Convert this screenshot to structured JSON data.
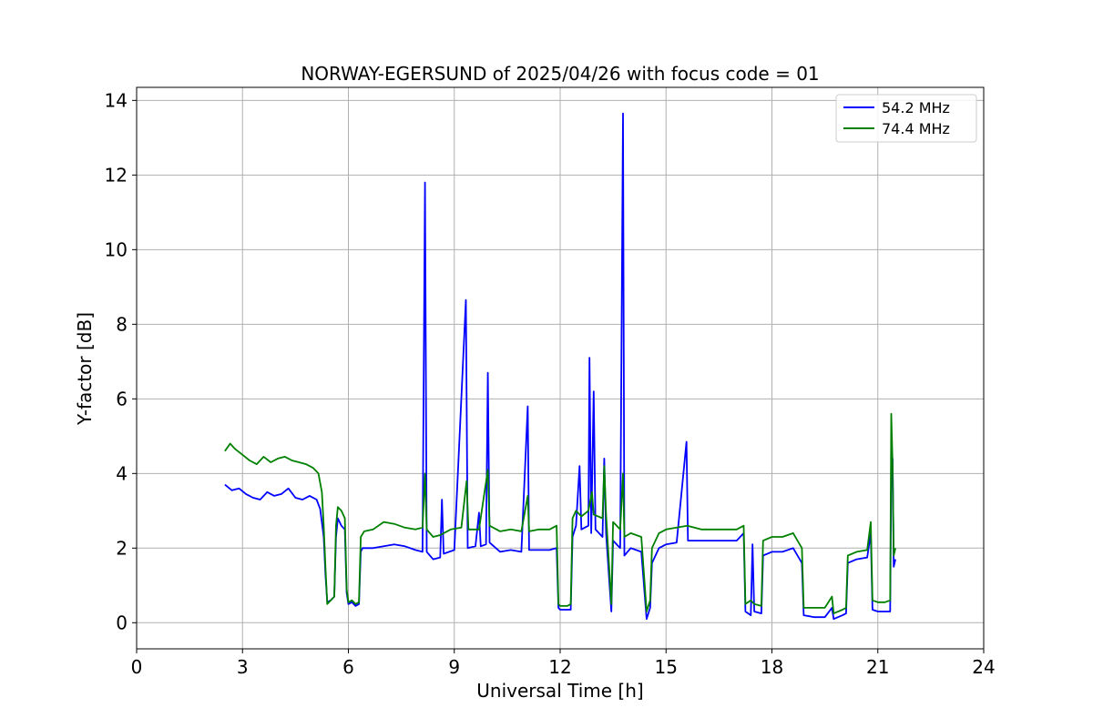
{
  "chart_data": {
    "type": "line",
    "title": "NORWAY-EGERSUND of 2025/04/26 with focus code = 01",
    "xlabel": "Universal Time [h]",
    "ylabel": "Y-factor [dB]",
    "xlim": [
      0,
      24
    ],
    "ylim": [
      -0.7,
      14.35
    ],
    "xticks": [
      0,
      3,
      6,
      9,
      12,
      15,
      18,
      21,
      24
    ],
    "yticks": [
      0,
      2,
      4,
      6,
      8,
      10,
      12,
      14
    ],
    "grid": true,
    "legend": "top-right",
    "series": [
      {
        "name": "54.2 MHz",
        "color": "#0000ff",
        "points": [
          [
            2.5,
            3.7
          ],
          [
            2.7,
            3.55
          ],
          [
            2.9,
            3.6
          ],
          [
            3.1,
            3.45
          ],
          [
            3.3,
            3.35
          ],
          [
            3.5,
            3.3
          ],
          [
            3.7,
            3.5
          ],
          [
            3.9,
            3.4
          ],
          [
            4.1,
            3.45
          ],
          [
            4.3,
            3.6
          ],
          [
            4.5,
            3.35
          ],
          [
            4.7,
            3.3
          ],
          [
            4.9,
            3.4
          ],
          [
            5.1,
            3.3
          ],
          [
            5.2,
            3.05
          ],
          [
            5.3,
            2.3
          ],
          [
            5.35,
            1.3
          ],
          [
            5.4,
            0.55
          ],
          [
            5.5,
            0.6
          ],
          [
            5.6,
            0.7
          ],
          [
            5.65,
            2.3
          ],
          [
            5.7,
            2.8
          ],
          [
            5.8,
            2.6
          ],
          [
            5.9,
            2.5
          ],
          [
            5.95,
            0.8
          ],
          [
            6.0,
            0.5
          ],
          [
            6.1,
            0.55
          ],
          [
            6.2,
            0.45
          ],
          [
            6.3,
            0.5
          ],
          [
            6.35,
            1.9
          ],
          [
            6.4,
            2.0
          ],
          [
            6.7,
            2.0
          ],
          [
            7.0,
            2.05
          ],
          [
            7.3,
            2.1
          ],
          [
            7.6,
            2.05
          ],
          [
            7.9,
            1.95
          ],
          [
            8.1,
            1.9
          ],
          [
            8.17,
            11.8
          ],
          [
            8.22,
            1.9
          ],
          [
            8.4,
            1.7
          ],
          [
            8.6,
            1.75
          ],
          [
            8.65,
            3.3
          ],
          [
            8.7,
            1.85
          ],
          [
            9.0,
            1.95
          ],
          [
            9.33,
            8.65
          ],
          [
            9.38,
            2.0
          ],
          [
            9.6,
            2.05
          ],
          [
            9.7,
            2.95
          ],
          [
            9.75,
            2.05
          ],
          [
            9.9,
            2.1
          ],
          [
            9.95,
            6.7
          ],
          [
            10.0,
            2.15
          ],
          [
            10.3,
            1.9
          ],
          [
            10.6,
            1.95
          ],
          [
            10.9,
            1.9
          ],
          [
            11.08,
            5.8
          ],
          [
            11.12,
            1.95
          ],
          [
            11.4,
            1.95
          ],
          [
            11.7,
            1.95
          ],
          [
            11.9,
            2.0
          ],
          [
            11.95,
            0.4
          ],
          [
            12.0,
            0.35
          ],
          [
            12.2,
            0.35
          ],
          [
            12.3,
            0.35
          ],
          [
            12.35,
            2.3
          ],
          [
            12.45,
            2.6
          ],
          [
            12.55,
            4.2
          ],
          [
            12.6,
            2.5
          ],
          [
            12.8,
            2.6
          ],
          [
            12.83,
            7.1
          ],
          [
            12.88,
            2.4
          ],
          [
            12.95,
            6.2
          ],
          [
            13.0,
            2.5
          ],
          [
            13.2,
            2.3
          ],
          [
            13.25,
            4.4
          ],
          [
            13.3,
            2.4
          ],
          [
            13.45,
            0.3
          ],
          [
            13.5,
            2.2
          ],
          [
            13.7,
            2.0
          ],
          [
            13.78,
            13.65
          ],
          [
            13.82,
            1.8
          ],
          [
            14.0,
            2.0
          ],
          [
            14.3,
            1.9
          ],
          [
            14.45,
            0.1
          ],
          [
            14.55,
            0.4
          ],
          [
            14.6,
            1.6
          ],
          [
            14.8,
            2.0
          ],
          [
            15.0,
            2.1
          ],
          [
            15.3,
            2.15
          ],
          [
            15.58,
            4.85
          ],
          [
            15.62,
            2.2
          ],
          [
            16.0,
            2.2
          ],
          [
            16.5,
            2.2
          ],
          [
            17.0,
            2.2
          ],
          [
            17.2,
            2.4
          ],
          [
            17.25,
            0.3
          ],
          [
            17.4,
            0.2
          ],
          [
            17.45,
            2.1
          ],
          [
            17.5,
            0.3
          ],
          [
            17.7,
            0.25
          ],
          [
            17.75,
            1.8
          ],
          [
            18.0,
            1.9
          ],
          [
            18.3,
            1.9
          ],
          [
            18.6,
            2.0
          ],
          [
            18.85,
            1.6
          ],
          [
            18.9,
            0.2
          ],
          [
            19.2,
            0.15
          ],
          [
            19.5,
            0.15
          ],
          [
            19.7,
            0.4
          ],
          [
            19.75,
            0.1
          ],
          [
            20.0,
            0.2
          ],
          [
            20.1,
            0.25
          ],
          [
            20.15,
            1.6
          ],
          [
            20.4,
            1.7
          ],
          [
            20.7,
            1.75
          ],
          [
            20.8,
            2.4
          ],
          [
            20.85,
            0.35
          ],
          [
            21.0,
            0.3
          ],
          [
            21.2,
            0.3
          ],
          [
            21.35,
            0.3
          ],
          [
            21.38,
            3.9
          ],
          [
            21.42,
            4.4
          ],
          [
            21.45,
            1.5
          ],
          [
            21.5,
            1.7
          ]
        ]
      },
      {
        "name": "74.4 MHz",
        "color": "#008000",
        "points": [
          [
            2.5,
            4.6
          ],
          [
            2.65,
            4.8
          ],
          [
            2.8,
            4.65
          ],
          [
            3.0,
            4.5
          ],
          [
            3.2,
            4.35
          ],
          [
            3.4,
            4.25
          ],
          [
            3.6,
            4.45
          ],
          [
            3.8,
            4.3
          ],
          [
            4.0,
            4.4
          ],
          [
            4.2,
            4.45
          ],
          [
            4.4,
            4.35
          ],
          [
            4.6,
            4.3
          ],
          [
            4.8,
            4.25
          ],
          [
            5.0,
            4.15
          ],
          [
            5.15,
            4.0
          ],
          [
            5.25,
            3.5
          ],
          [
            5.3,
            2.6
          ],
          [
            5.35,
            1.5
          ],
          [
            5.4,
            0.5
          ],
          [
            5.5,
            0.6
          ],
          [
            5.6,
            0.7
          ],
          [
            5.65,
            2.6
          ],
          [
            5.7,
            3.1
          ],
          [
            5.8,
            3.0
          ],
          [
            5.9,
            2.8
          ],
          [
            5.95,
            0.9
          ],
          [
            6.0,
            0.55
          ],
          [
            6.1,
            0.6
          ],
          [
            6.2,
            0.5
          ],
          [
            6.3,
            0.55
          ],
          [
            6.35,
            2.3
          ],
          [
            6.45,
            2.45
          ],
          [
            6.7,
            2.5
          ],
          [
            7.0,
            2.7
          ],
          [
            7.3,
            2.65
          ],
          [
            7.6,
            2.55
          ],
          [
            7.9,
            2.5
          ],
          [
            8.1,
            2.55
          ],
          [
            8.17,
            4.0
          ],
          [
            8.22,
            2.5
          ],
          [
            8.4,
            2.3
          ],
          [
            8.6,
            2.35
          ],
          [
            8.9,
            2.5
          ],
          [
            9.2,
            2.55
          ],
          [
            9.35,
            3.8
          ],
          [
            9.4,
            2.5
          ],
          [
            9.7,
            2.5
          ],
          [
            9.95,
            4.1
          ],
          [
            10.0,
            2.6
          ],
          [
            10.3,
            2.45
          ],
          [
            10.6,
            2.5
          ],
          [
            10.9,
            2.45
          ],
          [
            11.08,
            3.4
          ],
          [
            11.12,
            2.45
          ],
          [
            11.4,
            2.5
          ],
          [
            11.7,
            2.5
          ],
          [
            11.9,
            2.6
          ],
          [
            11.95,
            0.5
          ],
          [
            12.0,
            0.45
          ],
          [
            12.2,
            0.45
          ],
          [
            12.3,
            0.5
          ],
          [
            12.35,
            2.8
          ],
          [
            12.45,
            3.0
          ],
          [
            12.6,
            2.85
          ],
          [
            12.8,
            3.0
          ],
          [
            12.9,
            3.5
          ],
          [
            12.95,
            2.9
          ],
          [
            13.2,
            2.8
          ],
          [
            13.25,
            4.2
          ],
          [
            13.3,
            2.9
          ],
          [
            13.45,
            0.5
          ],
          [
            13.5,
            2.7
          ],
          [
            13.7,
            2.5
          ],
          [
            13.78,
            4.0
          ],
          [
            13.82,
            2.3
          ],
          [
            14.0,
            2.4
          ],
          [
            14.3,
            2.3
          ],
          [
            14.45,
            0.3
          ],
          [
            14.55,
            0.6
          ],
          [
            14.6,
            2.0
          ],
          [
            14.8,
            2.4
          ],
          [
            15.0,
            2.5
          ],
          [
            15.3,
            2.55
          ],
          [
            15.6,
            2.6
          ],
          [
            16.0,
            2.5
          ],
          [
            16.5,
            2.5
          ],
          [
            17.0,
            2.5
          ],
          [
            17.2,
            2.6
          ],
          [
            17.25,
            0.5
          ],
          [
            17.4,
            0.6
          ],
          [
            17.5,
            0.5
          ],
          [
            17.7,
            0.45
          ],
          [
            17.75,
            2.2
          ],
          [
            18.0,
            2.3
          ],
          [
            18.3,
            2.3
          ],
          [
            18.6,
            2.4
          ],
          [
            18.85,
            2.0
          ],
          [
            18.9,
            0.4
          ],
          [
            19.2,
            0.4
          ],
          [
            19.5,
            0.4
          ],
          [
            19.7,
            0.7
          ],
          [
            19.75,
            0.25
          ],
          [
            20.0,
            0.35
          ],
          [
            20.1,
            0.4
          ],
          [
            20.15,
            1.8
          ],
          [
            20.4,
            1.9
          ],
          [
            20.7,
            1.95
          ],
          [
            20.8,
            2.7
          ],
          [
            20.85,
            0.6
          ],
          [
            21.0,
            0.55
          ],
          [
            21.2,
            0.55
          ],
          [
            21.35,
            0.6
          ],
          [
            21.38,
            5.6
          ],
          [
            21.42,
            4.2
          ],
          [
            21.45,
            1.8
          ],
          [
            21.5,
            2.0
          ]
        ]
      }
    ]
  }
}
